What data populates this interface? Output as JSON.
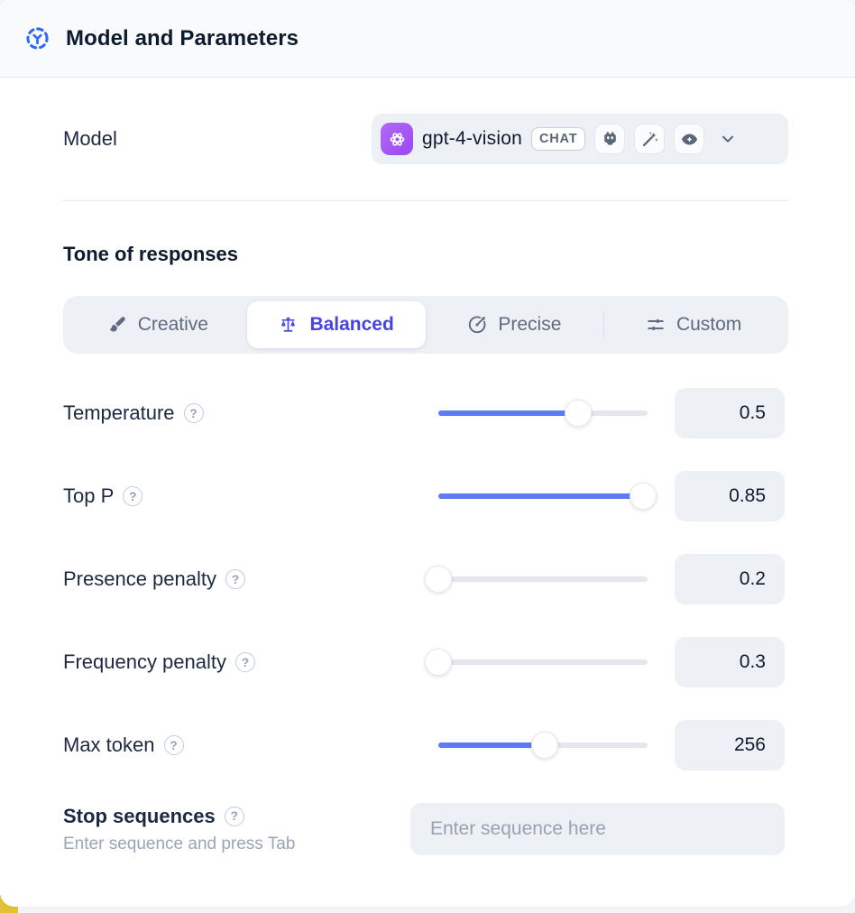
{
  "header": {
    "title": "Model and Parameters",
    "icon": "model-hub-icon",
    "accent_color": "#2e6bf0"
  },
  "model": {
    "label": "Model",
    "selected_model": "gpt-4-vision",
    "provider_icon": "openai-logo",
    "provider_color": "#a259f3",
    "type_badge": "CHAT",
    "capability_icons": [
      "robot-icon",
      "magic-wand-icon",
      "vision-eye-icon"
    ],
    "dropdown_icon": "chevron-down-icon"
  },
  "tone": {
    "heading": "Tone of responses",
    "selected": "Balanced",
    "selected_color": "#4745e2",
    "options": [
      {
        "label": "Creative",
        "icon": "paintbrush-icon"
      },
      {
        "label": "Balanced",
        "icon": "balance-scale-icon"
      },
      {
        "label": "Precise",
        "icon": "target-arrow-icon"
      },
      {
        "label": "Custom",
        "icon": "tune-sliders-icon"
      }
    ]
  },
  "parameters": [
    {
      "label": "Temperature",
      "value": "0.5",
      "fill_pct": 67
    },
    {
      "label": "Top P",
      "value": "0.85",
      "fill_pct": 98
    },
    {
      "label": "Presence penalty",
      "value": "0.2",
      "fill_pct": 0
    },
    {
      "label": "Frequency penalty",
      "value": "0.3",
      "fill_pct": 0
    },
    {
      "label": "Max token",
      "value": "256",
      "fill_pct": 51
    }
  ],
  "stop_sequences": {
    "label": "Stop sequences",
    "hint": "Enter sequence and press Tab",
    "placeholder": "Enter sequence here"
  },
  "icons": {
    "help_glyph": "?"
  },
  "colors": {
    "slider_fill": "#5d7bf5",
    "control_bg": "#edf0f5",
    "header_bg": "#f8fafc",
    "corner_accent": "#e3c235"
  }
}
